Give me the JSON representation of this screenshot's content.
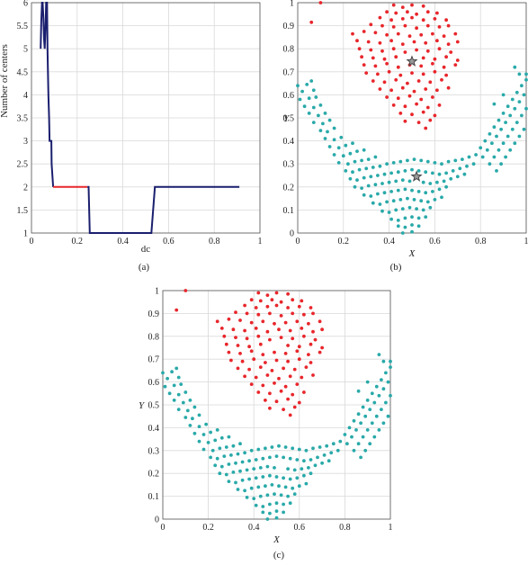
{
  "colors": {
    "red": "#e8262b",
    "teal": "#2aa9a9",
    "navy": "#1a1f6e",
    "grid": "#d9d9d9",
    "axis": "#555555",
    "star": "#444444"
  },
  "chart_data": [
    {
      "id": "a",
      "type": "line",
      "caption": "(a)",
      "xlabel": "dc",
      "ylabel": "Number of centers",
      "xlim": [
        0,
        1
      ],
      "ylim": [
        1,
        6
      ],
      "xticks": [
        "0",
        "0.2",
        "0.4",
        "0.6",
        "0.8",
        "1"
      ],
      "yticks": [
        "1",
        "1.5",
        "2",
        "2.5",
        "3",
        "3.5",
        "4",
        "4.5",
        "5",
        "5.5",
        "6"
      ],
      "grid": true,
      "series": [
        {
          "color": "navy",
          "points": [
            [
              0.04,
              5
            ],
            [
              0.043,
              5.6
            ],
            [
              0.046,
              6
            ],
            [
              0.049,
              6
            ],
            [
              0.052,
              5.7
            ],
            [
              0.055,
              5.2
            ],
            [
              0.058,
              5
            ],
            [
              0.061,
              5.4
            ],
            [
              0.064,
              6
            ],
            [
              0.068,
              6
            ],
            [
              0.07,
              5
            ],
            [
              0.074,
              4
            ],
            [
              0.077,
              3.5
            ],
            [
              0.079,
              3
            ],
            [
              0.087,
              3
            ],
            [
              0.088,
              2.5
            ],
            [
              0.095,
              2
            ]
          ]
        },
        {
          "color": "red",
          "points": [
            [
              0.095,
              2
            ],
            [
              0.245,
              2
            ]
          ]
        },
        {
          "color": "navy",
          "points": [
            [
              0.245,
              2
            ],
            [
              0.25,
              2
            ],
            [
              0.255,
              1
            ],
            [
              0.525,
              1
            ],
            [
              0.54,
              2
            ],
            [
              0.665,
              2
            ],
            [
              0.91,
              2
            ]
          ]
        }
      ]
    },
    {
      "id": "b",
      "type": "scatter",
      "caption": "(b)",
      "xlabel": "X",
      "ylabel": "Y",
      "xlim": [
        0,
        1
      ],
      "ylim": [
        0,
        1
      ],
      "xticks": [
        "0",
        "0.2",
        "0.4",
        "0.6",
        "0.8",
        "1"
      ],
      "yticks": [
        "0",
        "0.1",
        "0.2",
        "0.3",
        "0.4",
        "0.5",
        "0.6",
        "0.7",
        "0.8",
        "0.9",
        "1"
      ],
      "grid": true,
      "centers": [
        [
          0.5,
          0.745
        ],
        [
          0.52,
          0.245
        ]
      ]
    },
    {
      "id": "c",
      "type": "scatter",
      "caption": "(c)",
      "xlabel": "X",
      "ylabel": "Y",
      "xlim": [
        0,
        1
      ],
      "ylim": [
        0,
        1
      ],
      "xticks": [
        "0",
        "0.2",
        "0.4",
        "0.6",
        "0.8",
        "1"
      ],
      "yticks": [
        "0",
        "0.1",
        "0.2",
        "0.3",
        "0.4",
        "0.5",
        "0.6",
        "0.7",
        "0.8",
        "0.9",
        "1"
      ],
      "grid": true,
      "centers": []
    }
  ],
  "scatter_points": {
    "red": [
      [
        0.1,
        1.0
      ],
      [
        0.06,
        0.915
      ],
      [
        0.42,
        0.99
      ],
      [
        0.46,
        0.98
      ],
      [
        0.5,
        0.99
      ],
      [
        0.55,
        0.985
      ],
      [
        0.39,
        0.96
      ],
      [
        0.43,
        0.955
      ],
      [
        0.48,
        0.96
      ],
      [
        0.52,
        0.95
      ],
      [
        0.57,
        0.96
      ],
      [
        0.61,
        0.955
      ],
      [
        0.36,
        0.935
      ],
      [
        0.41,
        0.925
      ],
      [
        0.46,
        0.93
      ],
      [
        0.5,
        0.935
      ],
      [
        0.55,
        0.925
      ],
      [
        0.6,
        0.93
      ],
      [
        0.65,
        0.925
      ],
      [
        0.32,
        0.905
      ],
      [
        0.37,
        0.9
      ],
      [
        0.42,
        0.895
      ],
      [
        0.47,
        0.9
      ],
      [
        0.52,
        0.89
      ],
      [
        0.57,
        0.9
      ],
      [
        0.62,
        0.895
      ],
      [
        0.66,
        0.9
      ],
      [
        0.24,
        0.865
      ],
      [
        0.29,
        0.875
      ],
      [
        0.34,
        0.87
      ],
      [
        0.39,
        0.86
      ],
      [
        0.44,
        0.865
      ],
      [
        0.49,
        0.855
      ],
      [
        0.54,
        0.86
      ],
      [
        0.59,
        0.865
      ],
      [
        0.64,
        0.855
      ],
      [
        0.69,
        0.865
      ],
      [
        0.26,
        0.835
      ],
      [
        0.31,
        0.83
      ],
      [
        0.36,
        0.825
      ],
      [
        0.41,
        0.835
      ],
      [
        0.46,
        0.82
      ],
      [
        0.51,
        0.83
      ],
      [
        0.56,
        0.825
      ],
      [
        0.61,
        0.835
      ],
      [
        0.66,
        0.82
      ],
      [
        0.7,
        0.83
      ],
      [
        0.27,
        0.8
      ],
      [
        0.32,
        0.795
      ],
      [
        0.37,
        0.79
      ],
      [
        0.42,
        0.8
      ],
      [
        0.47,
        0.785
      ],
      [
        0.52,
        0.795
      ],
      [
        0.57,
        0.79
      ],
      [
        0.62,
        0.8
      ],
      [
        0.67,
        0.785
      ],
      [
        0.28,
        0.765
      ],
      [
        0.33,
        0.76
      ],
      [
        0.38,
        0.755
      ],
      [
        0.43,
        0.765
      ],
      [
        0.55,
        0.76
      ],
      [
        0.6,
        0.755
      ],
      [
        0.65,
        0.765
      ],
      [
        0.7,
        0.75
      ],
      [
        0.29,
        0.73
      ],
      [
        0.34,
        0.725
      ],
      [
        0.39,
        0.735
      ],
      [
        0.44,
        0.72
      ],
      [
        0.49,
        0.73
      ],
      [
        0.54,
        0.725
      ],
      [
        0.59,
        0.735
      ],
      [
        0.64,
        0.72
      ],
      [
        0.69,
        0.73
      ],
      [
        0.3,
        0.695
      ],
      [
        0.35,
        0.69
      ],
      [
        0.4,
        0.7
      ],
      [
        0.45,
        0.685
      ],
      [
        0.5,
        0.695
      ],
      [
        0.55,
        0.69
      ],
      [
        0.6,
        0.7
      ],
      [
        0.65,
        0.685
      ],
      [
        0.33,
        0.66
      ],
      [
        0.38,
        0.655
      ],
      [
        0.43,
        0.665
      ],
      [
        0.48,
        0.65
      ],
      [
        0.53,
        0.66
      ],
      [
        0.58,
        0.655
      ],
      [
        0.63,
        0.665
      ],
      [
        0.36,
        0.625
      ],
      [
        0.41,
        0.62
      ],
      [
        0.46,
        0.63
      ],
      [
        0.51,
        0.615
      ],
      [
        0.56,
        0.625
      ],
      [
        0.61,
        0.62
      ],
      [
        0.66,
        0.63
      ],
      [
        0.39,
        0.59
      ],
      [
        0.44,
        0.585
      ],
      [
        0.49,
        0.595
      ],
      [
        0.54,
        0.58
      ],
      [
        0.59,
        0.59
      ],
      [
        0.42,
        0.555
      ],
      [
        0.47,
        0.55
      ],
      [
        0.52,
        0.56
      ],
      [
        0.57,
        0.545
      ],
      [
        0.62,
        0.555
      ],
      [
        0.45,
        0.52
      ],
      [
        0.5,
        0.515
      ],
      [
        0.55,
        0.525
      ],
      [
        0.6,
        0.51
      ],
      [
        0.47,
        0.485
      ],
      [
        0.53,
        0.48
      ],
      [
        0.58,
        0.49
      ],
      [
        0.56,
        0.455
      ]
    ],
    "teal": [
      [
        0.0,
        0.64
      ],
      [
        0.04,
        0.645
      ],
      [
        0.06,
        0.66
      ],
      [
        0.02,
        0.615
      ],
      [
        0.07,
        0.62
      ],
      [
        0.01,
        0.58
      ],
      [
        0.05,
        0.585
      ],
      [
        0.08,
        0.59
      ],
      [
        0.03,
        0.55
      ],
      [
        0.07,
        0.545
      ],
      [
        0.1,
        0.555
      ],
      [
        0.05,
        0.52
      ],
      [
        0.09,
        0.51
      ],
      [
        0.12,
        0.52
      ],
      [
        0.07,
        0.48
      ],
      [
        0.11,
        0.475
      ],
      [
        0.14,
        0.49
      ],
      [
        0.1,
        0.445
      ],
      [
        0.13,
        0.44
      ],
      [
        0.16,
        0.455
      ],
      [
        0.12,
        0.41
      ],
      [
        0.16,
        0.405
      ],
      [
        0.19,
        0.415
      ],
      [
        0.14,
        0.375
      ],
      [
        0.18,
        0.37
      ],
      [
        0.21,
        0.38
      ],
      [
        0.24,
        0.39
      ],
      [
        0.16,
        0.34
      ],
      [
        0.2,
        0.335
      ],
      [
        0.23,
        0.345
      ],
      [
        0.26,
        0.355
      ],
      [
        0.29,
        0.36
      ],
      [
        0.18,
        0.305
      ],
      [
        0.22,
        0.3
      ],
      [
        0.25,
        0.31
      ],
      [
        0.28,
        0.315
      ],
      [
        0.31,
        0.32
      ],
      [
        0.34,
        0.33
      ],
      [
        0.21,
        0.27
      ],
      [
        0.24,
        0.265
      ],
      [
        0.27,
        0.275
      ],
      [
        0.3,
        0.28
      ],
      [
        0.33,
        0.285
      ],
      [
        0.36,
        0.29
      ],
      [
        0.39,
        0.3
      ],
      [
        0.42,
        0.305
      ],
      [
        0.45,
        0.31
      ],
      [
        0.48,
        0.315
      ],
      [
        0.51,
        0.32
      ],
      [
        0.54,
        0.315
      ],
      [
        0.57,
        0.31
      ],
      [
        0.6,
        0.305
      ],
      [
        0.63,
        0.3
      ],
      [
        0.66,
        0.31
      ],
      [
        0.69,
        0.315
      ],
      [
        0.72,
        0.32
      ],
      [
        0.75,
        0.33
      ],
      [
        0.23,
        0.235
      ],
      [
        0.26,
        0.23
      ],
      [
        0.29,
        0.24
      ],
      [
        0.32,
        0.245
      ],
      [
        0.35,
        0.25
      ],
      [
        0.38,
        0.255
      ],
      [
        0.41,
        0.26
      ],
      [
        0.44,
        0.265
      ],
      [
        0.47,
        0.27
      ],
      [
        0.5,
        0.275
      ],
      [
        0.53,
        0.27
      ],
      [
        0.56,
        0.265
      ],
      [
        0.59,
        0.26
      ],
      [
        0.62,
        0.255
      ],
      [
        0.65,
        0.26
      ],
      [
        0.68,
        0.27
      ],
      [
        0.71,
        0.28
      ],
      [
        0.74,
        0.29
      ],
      [
        0.77,
        0.3
      ],
      [
        0.25,
        0.2
      ],
      [
        0.28,
        0.195
      ],
      [
        0.31,
        0.205
      ],
      [
        0.34,
        0.21
      ],
      [
        0.37,
        0.215
      ],
      [
        0.4,
        0.22
      ],
      [
        0.43,
        0.225
      ],
      [
        0.46,
        0.23
      ],
      [
        0.49,
        0.225
      ],
      [
        0.55,
        0.22
      ],
      [
        0.58,
        0.215
      ],
      [
        0.61,
        0.22
      ],
      [
        0.64,
        0.225
      ],
      [
        0.67,
        0.235
      ],
      [
        0.7,
        0.245
      ],
      [
        0.73,
        0.255
      ],
      [
        0.29,
        0.165
      ],
      [
        0.32,
        0.16
      ],
      [
        0.35,
        0.17
      ],
      [
        0.38,
        0.175
      ],
      [
        0.41,
        0.18
      ],
      [
        0.44,
        0.185
      ],
      [
        0.47,
        0.19
      ],
      [
        0.5,
        0.185
      ],
      [
        0.53,
        0.18
      ],
      [
        0.56,
        0.175
      ],
      [
        0.59,
        0.18
      ],
      [
        0.62,
        0.19
      ],
      [
        0.65,
        0.2
      ],
      [
        0.33,
        0.13
      ],
      [
        0.36,
        0.125
      ],
      [
        0.39,
        0.135
      ],
      [
        0.42,
        0.14
      ],
      [
        0.45,
        0.145
      ],
      [
        0.48,
        0.15
      ],
      [
        0.51,
        0.145
      ],
      [
        0.54,
        0.14
      ],
      [
        0.57,
        0.135
      ],
      [
        0.6,
        0.145
      ],
      [
        0.63,
        0.155
      ],
      [
        0.37,
        0.095
      ],
      [
        0.4,
        0.09
      ],
      [
        0.43,
        0.1
      ],
      [
        0.46,
        0.105
      ],
      [
        0.49,
        0.11
      ],
      [
        0.52,
        0.105
      ],
      [
        0.55,
        0.1
      ],
      [
        0.58,
        0.11
      ],
      [
        0.41,
        0.06
      ],
      [
        0.44,
        0.055
      ],
      [
        0.47,
        0.065
      ],
      [
        0.5,
        0.07
      ],
      [
        0.53,
        0.065
      ],
      [
        0.56,
        0.07
      ],
      [
        0.44,
        0.03
      ],
      [
        0.47,
        0.025
      ],
      [
        0.5,
        0.035
      ],
      [
        0.53,
        0.03
      ],
      [
        0.46,
        0.0
      ],
      [
        0.5,
        0.005
      ],
      [
        0.78,
        0.34
      ],
      [
        0.8,
        0.37
      ],
      [
        0.82,
        0.4
      ],
      [
        0.84,
        0.43
      ],
      [
        0.86,
        0.46
      ],
      [
        0.88,
        0.49
      ],
      [
        0.9,
        0.52
      ],
      [
        0.92,
        0.55
      ],
      [
        0.94,
        0.58
      ],
      [
        0.96,
        0.61
      ],
      [
        0.98,
        0.64
      ],
      [
        1.0,
        0.665
      ],
      [
        0.81,
        0.33
      ],
      [
        0.83,
        0.36
      ],
      [
        0.85,
        0.39
      ],
      [
        0.87,
        0.42
      ],
      [
        0.89,
        0.45
      ],
      [
        0.91,
        0.48
      ],
      [
        0.93,
        0.51
      ],
      [
        0.95,
        0.54
      ],
      [
        0.97,
        0.57
      ],
      [
        0.99,
        0.6
      ],
      [
        0.84,
        0.3
      ],
      [
        0.86,
        0.33
      ],
      [
        0.88,
        0.36
      ],
      [
        0.9,
        0.39
      ],
      [
        0.92,
        0.42
      ],
      [
        0.94,
        0.45
      ],
      [
        0.96,
        0.48
      ],
      [
        0.98,
        0.51
      ],
      [
        1.0,
        0.54
      ],
      [
        0.87,
        0.27
      ],
      [
        0.89,
        0.3
      ],
      [
        0.91,
        0.33
      ],
      [
        0.93,
        0.36
      ],
      [
        0.95,
        0.39
      ],
      [
        0.97,
        0.42
      ],
      [
        0.99,
        0.45
      ],
      [
        0.95,
        0.72
      ],
      [
        0.97,
        0.69
      ],
      [
        1.0,
        0.69
      ],
      [
        0.9,
        0.6
      ],
      [
        0.86,
        0.56
      ]
    ]
  }
}
